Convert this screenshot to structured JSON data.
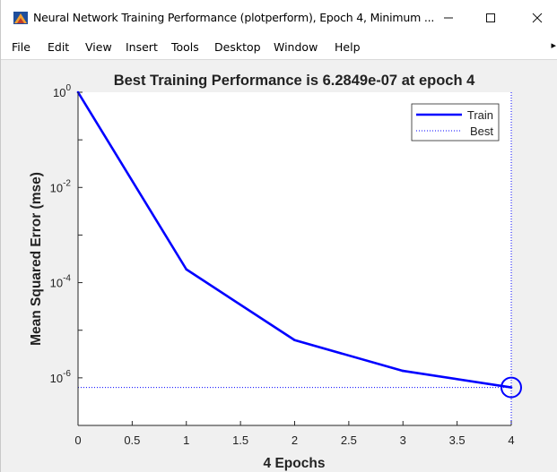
{
  "window": {
    "title": "Neural Network Training Performance (plotperform), Epoch 4, Minimum ...",
    "controls": {
      "minimize": "—",
      "maximize": "☐",
      "close": "✕"
    }
  },
  "menu": {
    "items": [
      "File",
      "Edit",
      "View",
      "Insert",
      "Tools",
      "Desktop",
      "Window",
      "Help"
    ],
    "overflow_glyph": "▸"
  },
  "chart_data": {
    "type": "line",
    "title": "Best Training Performance is 6.2849e-07 at epoch 4",
    "xlabel": "4 Epochs",
    "ylabel": "Mean Squared Error  (mse)",
    "xlim": [
      0,
      4
    ],
    "ylim": [
      1e-07,
      1
    ],
    "yscale": "log",
    "x_ticks": [
      0,
      0.5,
      1,
      1.5,
      2,
      2.5,
      3,
      3.5,
      4
    ],
    "x_tick_labels": [
      "0",
      "0.5",
      "1",
      "1.5",
      "2",
      "2.5",
      "3",
      "3.5",
      "4"
    ],
    "y_ticks": [
      1,
      0.01,
      0.0001,
      1e-06
    ],
    "y_tick_labels": [
      {
        "base": "10",
        "exp": "0"
      },
      {
        "base": "10",
        "exp": "-2"
      },
      {
        "base": "10",
        "exp": "-4"
      },
      {
        "base": "10",
        "exp": "-6"
      }
    ],
    "series": [
      {
        "name": "Train",
        "color": "#0000ff",
        "style": "solid",
        "x": [
          0,
          1,
          2,
          3,
          4
        ],
        "y": [
          1.0,
          0.00019,
          6.2e-06,
          1.4e-06,
          6.2849e-07
        ]
      }
    ],
    "best": {
      "name": "Best",
      "color": "#0000ff",
      "style": "dotted",
      "epoch": 4,
      "value": 6.2849e-07
    },
    "grid": false,
    "legend_position": "top-right"
  }
}
